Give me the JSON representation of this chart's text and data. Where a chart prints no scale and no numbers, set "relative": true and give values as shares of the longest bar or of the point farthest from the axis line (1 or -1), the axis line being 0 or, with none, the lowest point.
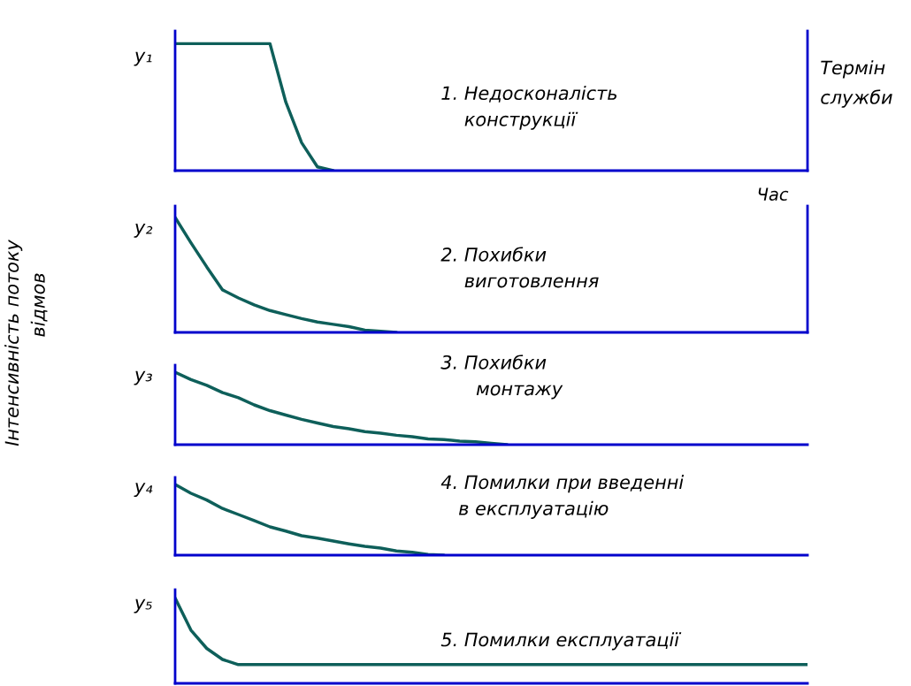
{
  "chart_data": [
    {
      "type": "line",
      "relative": true,
      "ylabel": "y₁",
      "xlabel": "Час",
      "categories": [
        null,
        null,
        null,
        null,
        null,
        null,
        null,
        null,
        null,
        null,
        null,
        null,
        null,
        null,
        null,
        null,
        null,
        null,
        null,
        null,
        null,
        null,
        null,
        null,
        null,
        null,
        null,
        null,
        null,
        null,
        null,
        null,
        null,
        null,
        null,
        null,
        null,
        null,
        null,
        null,
        null
      ],
      "series": [
        {
          "color": "#0e5f5a",
          "values": [
            1,
            1,
            1,
            1,
            1,
            1,
            1,
            0.54,
            0.22,
            0.03,
            0,
            null,
            null,
            null,
            null,
            null,
            null,
            null,
            null,
            null,
            null,
            null,
            null,
            null,
            null,
            null,
            null,
            null,
            null,
            null,
            null,
            null,
            null,
            null,
            null,
            null,
            null,
            null,
            null,
            null,
            null
          ]
        }
      ],
      "annotations": [
        "1. Недосконалість\n    конструкції",
        "Термін\nслужби"
      ]
    },
    {
      "type": "line",
      "relative": true,
      "ylabel": "y₂",
      "categories": [
        null,
        null,
        null,
        null,
        null,
        null,
        null,
        null,
        null,
        null,
        null,
        null,
        null,
        null,
        null,
        null,
        null,
        null,
        null,
        null,
        null,
        null,
        null,
        null,
        null,
        null,
        null,
        null,
        null,
        null,
        null,
        null,
        null,
        null,
        null,
        null,
        null,
        null,
        null,
        null,
        null
      ],
      "series": [
        {
          "color": "#0e5f5a",
          "values": [
            1,
            0.78,
            0.57,
            0.37,
            0.3,
            0.24,
            0.19,
            0.155,
            0.12,
            0.09,
            0.07,
            0.05,
            0.02,
            0.01,
            0,
            null,
            null,
            null,
            null,
            null,
            null,
            null,
            null,
            null,
            null,
            null,
            null,
            null,
            null,
            null,
            null,
            null,
            null,
            null,
            null,
            null,
            null,
            null,
            null,
            null,
            null
          ]
        }
      ],
      "annotations": [
        "2. Похибки\n    виготовлення"
      ]
    },
    {
      "type": "line",
      "relative": true,
      "ylabel": "y₃",
      "categories": [
        null,
        null,
        null,
        null,
        null,
        null,
        null,
        null,
        null,
        null,
        null,
        null,
        null,
        null,
        null,
        null,
        null,
        null,
        null,
        null,
        null,
        null,
        null,
        null,
        null,
        null,
        null,
        null,
        null,
        null,
        null,
        null,
        null,
        null,
        null,
        null,
        null,
        null,
        null,
        null,
        null
      ],
      "series": [
        {
          "color": "#0e5f5a",
          "values": [
            1,
            0.9,
            0.82,
            0.72,
            0.65,
            0.55,
            0.47,
            0.41,
            0.35,
            0.3,
            0.25,
            0.22,
            0.18,
            0.16,
            0.13,
            0.11,
            0.08,
            0.07,
            0.05,
            0.04,
            0.02,
            0,
            null,
            null,
            null,
            null,
            null,
            null,
            null,
            null,
            null,
            null,
            null,
            null,
            null,
            null,
            null,
            null,
            null,
            null,
            null
          ]
        }
      ],
      "annotations": [
        "3. Похибки\n      монтажу",
        "Інтенсивність потоку\n             відмов"
      ]
    },
    {
      "type": "line",
      "relative": true,
      "ylabel": "y₄",
      "categories": [
        null,
        null,
        null,
        null,
        null,
        null,
        null,
        null,
        null,
        null,
        null,
        null,
        null,
        null,
        null,
        null,
        null,
        null,
        null,
        null,
        null,
        null,
        null,
        null,
        null,
        null,
        null,
        null,
        null,
        null,
        null,
        null,
        null,
        null,
        null,
        null,
        null,
        null,
        null,
        null,
        null
      ],
      "series": [
        {
          "color": "#0e5f5a",
          "values": [
            1,
            0.875,
            0.78,
            0.66,
            0.575,
            0.49,
            0.4,
            0.34,
            0.275,
            0.24,
            0.2,
            0.16,
            0.125,
            0.1,
            0.06,
            0.04,
            0.01,
            0,
            null,
            null,
            null,
            null,
            null,
            null,
            null,
            null,
            null,
            null,
            null,
            null,
            null,
            null,
            null,
            null,
            null,
            null,
            null,
            null,
            null,
            null,
            null
          ]
        }
      ],
      "annotations": [
        "4. Помилки при введенні\n   в експлуатацію"
      ]
    },
    {
      "type": "line",
      "relative": true,
      "ylabel": "y₅",
      "categories": [
        null,
        null,
        null,
        null,
        null,
        null,
        null,
        null,
        null,
        null,
        null,
        null,
        null,
        null,
        null,
        null,
        null,
        null,
        null,
        null,
        null,
        null,
        null,
        null,
        null,
        null,
        null,
        null,
        null,
        null,
        null,
        null,
        null,
        null,
        null,
        null,
        null,
        null,
        null,
        null,
        null
      ],
      "series": [
        {
          "color": "#0e5f5a",
          "values": [
            1,
            0.625,
            0.41,
            0.28,
            0.22,
            0.22,
            0.22,
            0.22,
            0.22,
            0.22,
            0.22,
            0.22,
            0.22,
            0.22,
            0.22,
            0.22,
            0.22,
            0.22,
            0.22,
            0.22,
            0.22,
            0.22,
            0.22,
            0.22,
            0.22,
            0.22,
            0.22,
            0.22,
            0.22,
            0.22,
            0.22,
            0.22,
            0.22,
            0.22,
            0.22,
            0.22,
            0.22,
            0.22,
            0.22,
            0.22,
            0.22
          ]
        }
      ],
      "annotations": [
        "5. Помилки експлуатації"
      ]
    }
  ]
}
